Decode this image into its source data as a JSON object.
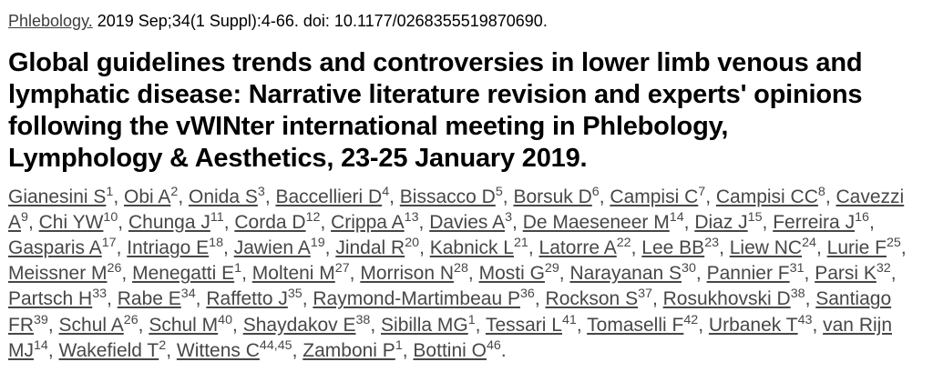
{
  "citation": {
    "journal": "Phlebology.",
    "details": " 2019 Sep;34(1 Suppl):4-66. doi: 10.1177/0268355519870690."
  },
  "title": "Global guidelines trends and controversies in lower limb venous and lymphatic disease: Narrative literature revision and experts' opinions following the vWINter international meeting in Phlebology, Lymphology & Aesthetics, 23-25 January 2019.",
  "authors": {
    "separator": ", ",
    "terminator": ".",
    "items": [
      {
        "name": "Gianesini S",
        "sup": "1"
      },
      {
        "name": "Obi A",
        "sup": "2"
      },
      {
        "name": "Onida S",
        "sup": "3"
      },
      {
        "name": "Baccellieri D",
        "sup": "4"
      },
      {
        "name": "Bissacco D",
        "sup": "5"
      },
      {
        "name": "Borsuk D",
        "sup": "6"
      },
      {
        "name": "Campisi C",
        "sup": "7"
      },
      {
        "name": "Campisi CC",
        "sup": "8"
      },
      {
        "name": "Cavezzi A",
        "sup": "9"
      },
      {
        "name": "Chi YW",
        "sup": "10"
      },
      {
        "name": "Chunga J",
        "sup": "11"
      },
      {
        "name": "Corda D",
        "sup": "12"
      },
      {
        "name": "Crippa A",
        "sup": "13"
      },
      {
        "name": "Davies A",
        "sup": "3"
      },
      {
        "name": "De Maeseneer M",
        "sup": "14"
      },
      {
        "name": "Diaz J",
        "sup": "15"
      },
      {
        "name": "Ferreira J",
        "sup": "16"
      },
      {
        "name": "Gasparis A",
        "sup": "17"
      },
      {
        "name": "Intriago E",
        "sup": "18"
      },
      {
        "name": "Jawien A",
        "sup": "19"
      },
      {
        "name": "Jindal R",
        "sup": "20"
      },
      {
        "name": "Kabnick L",
        "sup": "21"
      },
      {
        "name": "Latorre A",
        "sup": "22"
      },
      {
        "name": "Lee BB",
        "sup": "23"
      },
      {
        "name": "Liew NC",
        "sup": "24"
      },
      {
        "name": "Lurie F",
        "sup": "25"
      },
      {
        "name": "Meissner M",
        "sup": "26"
      },
      {
        "name": "Menegatti E",
        "sup": "1"
      },
      {
        "name": "Molteni M",
        "sup": "27"
      },
      {
        "name": "Morrison N",
        "sup": "28"
      },
      {
        "name": "Mosti G",
        "sup": "29"
      },
      {
        "name": "Narayanan S",
        "sup": "30"
      },
      {
        "name": "Pannier F",
        "sup": "31"
      },
      {
        "name": "Parsi K",
        "sup": "32"
      },
      {
        "name": "Partsch H",
        "sup": "33"
      },
      {
        "name": "Rabe E",
        "sup": "34"
      },
      {
        "name": "Raffetto J",
        "sup": "35"
      },
      {
        "name": "Raymond-Martimbeau P",
        "sup": "36"
      },
      {
        "name": "Rockson S",
        "sup": "37"
      },
      {
        "name": "Rosukhovski D",
        "sup": "38"
      },
      {
        "name": "Santiago FR",
        "sup": "39"
      },
      {
        "name": "Schul A",
        "sup": "26"
      },
      {
        "name": "Schul M",
        "sup": "40"
      },
      {
        "name": "Shaydakov E",
        "sup": "38"
      },
      {
        "name": "Sibilla MG",
        "sup": "1"
      },
      {
        "name": "Tessari L",
        "sup": "41"
      },
      {
        "name": "Tomaselli F",
        "sup": "42"
      },
      {
        "name": "Urbanek T",
        "sup": "43"
      },
      {
        "name": "van Rijn MJ",
        "sup": "14"
      },
      {
        "name": "Wakefield T",
        "sup": "2"
      },
      {
        "name": "Wittens C",
        "sup": "44,45"
      },
      {
        "name": "Zamboni P",
        "sup": "1"
      },
      {
        "name": "Bottini O",
        "sup": "46"
      }
    ]
  },
  "colors": {
    "background": "#ffffff",
    "title_text": "#000000",
    "author_text": "#474747"
  }
}
